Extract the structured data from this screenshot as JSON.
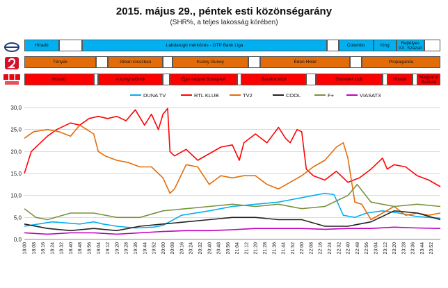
{
  "title": "2015. május 29., péntek esti közönségarány",
  "subtitle": "(SHR%, a teljes lakosság körében)",
  "colors": {
    "duna": "#00b0f0",
    "m1": "#00b0f0",
    "tv2": "#e36c0a",
    "rtl": "#ff0000",
    "blank": "#ffffff"
  },
  "schedules": [
    {
      "channel": "M1/Duna",
      "logo": "m1-logo-icon",
      "segments": [
        {
          "label": "Híradó",
          "start": "18:00",
          "end": "18:30",
          "color": "#00b0f0"
        },
        {
          "label": "",
          "start": "18:30",
          "end": "18:50",
          "color": "#ffffff"
        },
        {
          "label": "Labdarugó mérkőzés - OTP Bank Liga",
          "start": "18:50",
          "end": "22:22",
          "color": "#00b0f0"
        },
        {
          "label": "",
          "start": "22:22",
          "end": "22:32",
          "color": "#ffffff"
        },
        {
          "label": "Columbo",
          "start": "22:32",
          "end": "23:02",
          "color": "#00b0f0"
        },
        {
          "label": "King",
          "start": "23:02",
          "end": "23:22",
          "color": "#00b0f0"
        },
        {
          "label": "Rejtélyes XX. Század",
          "start": "23:22",
          "end": "23:46",
          "color": "#00b0f0"
        },
        {
          "label": "",
          "start": "23:46",
          "end": "24:00",
          "color": "#ffffff"
        }
      ]
    },
    {
      "channel": "TV2",
      "logo": "tv2-logo-icon",
      "segments": [
        {
          "label": "Tények",
          "start": "18:00",
          "end": "19:02",
          "color": "#e36c0a"
        },
        {
          "label": "",
          "start": "19:02",
          "end": "19:12",
          "color": "#ffffff"
        },
        {
          "label": "Jóban rosszban",
          "start": "19:12",
          "end": "20:00",
          "color": "#e36c0a"
        },
        {
          "label": "",
          "start": "20:00",
          "end": "20:08",
          "color": "#ffffff"
        },
        {
          "label": "Kuzey Guney",
          "start": "20:08",
          "end": "21:14",
          "color": "#e36c0a"
        },
        {
          "label": "",
          "start": "21:14",
          "end": "21:24",
          "color": "#ffffff"
        },
        {
          "label": "Éden Hotel",
          "start": "21:24",
          "end": "22:42",
          "color": "#e36c0a"
        },
        {
          "label": "",
          "start": "22:42",
          "end": "22:52",
          "color": "#ffffff"
        },
        {
          "label": "Propaganda",
          "start": "22:52",
          "end": "24:00",
          "color": "#e36c0a"
        }
      ]
    },
    {
      "channel": "RTL Klub",
      "logo": "rtl-klub-logo-icon",
      "segments": [
        {
          "label": "Híradó",
          "start": "18:00",
          "end": "19:00",
          "color": "#ff0000"
        },
        {
          "label": "",
          "start": "19:00",
          "end": "19:04",
          "color": "#ffffff"
        },
        {
          "label": "A konyhafőnök",
          "start": "19:04",
          "end": "20:00",
          "color": "#ff0000"
        },
        {
          "label": "",
          "start": "20:00",
          "end": "20:06",
          "color": "#ffffff"
        },
        {
          "label": "Éjjel-nappal Budapest",
          "start": "20:06",
          "end": "21:04",
          "color": "#ff0000"
        },
        {
          "label": "",
          "start": "21:04",
          "end": "21:08",
          "color": "#ffffff"
        },
        {
          "label": "Barátok közt",
          "start": "21:08",
          "end": "22:04",
          "color": "#ff0000"
        },
        {
          "label": "",
          "start": "22:04",
          "end": "22:12",
          "color": "#ffffff"
        },
        {
          "label": "Showder klub",
          "start": "22:12",
          "end": "23:10",
          "color": "#ff0000"
        },
        {
          "label": "",
          "start": "23:10",
          "end": "23:14",
          "color": "#ffffff"
        },
        {
          "label": "Híradó",
          "start": "23:14",
          "end": "23:36",
          "color": "#ff0000"
        },
        {
          "label": "",
          "start": "23:36",
          "end": "23:40",
          "color": "#ffffff"
        },
        {
          "label": "Magyarul Balóval",
          "start": "23:40",
          "end": "24:00",
          "color": "#ff0000"
        }
      ]
    }
  ],
  "chart_data": {
    "type": "line",
    "title": "2015. május 29., péntek esti közönségarány",
    "subtitle": "(SHR%, a teljes lakosság körében)",
    "ylim": [
      0,
      30
    ],
    "yticks": [
      "0,0",
      "5,0",
      "10,0",
      "15,0",
      "20,0",
      "25,0",
      "30,0"
    ],
    "grid": true,
    "legend": "top",
    "x_start": "18:00",
    "x_step_minutes": 8,
    "x_ticks": [
      "18:00",
      "18:08",
      "18:16",
      "18:24",
      "18:32",
      "18:40",
      "18:48",
      "18:56",
      "19:04",
      "19:12",
      "19:20",
      "19:28",
      "19:36",
      "19:44",
      "19:52",
      "20:00",
      "20:08",
      "20:16",
      "20:24",
      "20:32",
      "20:40",
      "20:48",
      "20:56",
      "21:04",
      "21:12",
      "21:20",
      "21:28",
      "21:36",
      "21:44",
      "21:52",
      "22:00",
      "22:08",
      "22:16",
      "22:24",
      "22:32",
      "22:40",
      "22:48",
      "22:56",
      "23:04",
      "23:12",
      "23:20",
      "23:28",
      "23:36",
      "23:44",
      "23:52"
    ],
    "series": [
      {
        "name": "DUNA TV",
        "color": "#00b0f0",
        "times": [
          "18:00",
          "18:24",
          "18:48",
          "19:00",
          "19:08",
          "19:20",
          "19:36",
          "19:52",
          "20:00",
          "20:16",
          "20:40",
          "21:00",
          "21:20",
          "21:40",
          "21:50",
          "22:00",
          "22:10",
          "22:20",
          "22:28",
          "22:36",
          "22:46",
          "22:56",
          "23:10",
          "23:24",
          "23:40",
          "24:00"
        ],
        "values": [
          3.0,
          4.0,
          3.5,
          4.0,
          3.5,
          3.0,
          2.6,
          2.8,
          3.2,
          5.5,
          6.5,
          7.5,
          8.0,
          8.5,
          9.0,
          9.5,
          10.0,
          10.5,
          10.2,
          5.5,
          5.0,
          6.0,
          6.5,
          6.0,
          5.2,
          4.8
        ]
      },
      {
        "name": "RTL KLUB",
        "color": "#ff0000",
        "times": [
          "18:00",
          "18:06",
          "18:12",
          "18:20",
          "18:28",
          "18:40",
          "18:48",
          "18:56",
          "19:04",
          "19:12",
          "19:20",
          "19:28",
          "19:36",
          "19:44",
          "19:50",
          "19:56",
          "20:00",
          "20:04",
          "20:06",
          "20:10",
          "20:20",
          "20:30",
          "20:40",
          "20:50",
          "21:00",
          "21:06",
          "21:10",
          "21:20",
          "21:30",
          "21:40",
          "21:46",
          "21:50",
          "21:56",
          "22:00",
          "22:04",
          "22:10",
          "22:20",
          "22:30",
          "22:40",
          "22:50",
          "23:00",
          "23:10",
          "23:14",
          "23:20",
          "23:30",
          "23:40",
          "23:50",
          "24:00"
        ],
        "values": [
          15.0,
          20.0,
          21.5,
          23.5,
          25.0,
          26.5,
          26.0,
          27.5,
          28.0,
          27.5,
          28.0,
          27.0,
          29.5,
          26.0,
          28.5,
          25.0,
          28.5,
          29.8,
          20.0,
          19.0,
          20.5,
          18.0,
          19.5,
          21.0,
          21.5,
          18.0,
          22.0,
          24.0,
          22.0,
          25.5,
          23.0,
          22.0,
          25.0,
          24.5,
          16.0,
          14.5,
          13.5,
          15.5,
          13.0,
          14.0,
          16.0,
          18.5,
          16.0,
          17.0,
          16.5,
          14.5,
          13.5,
          12.0
        ]
      },
      {
        "name": "TV2",
        "color": "#e36c0a",
        "times": [
          "18:00",
          "18:08",
          "18:20",
          "18:30",
          "18:40",
          "18:48",
          "19:00",
          "19:04",
          "19:10",
          "19:20",
          "19:30",
          "19:40",
          "19:50",
          "20:00",
          "20:06",
          "20:10",
          "20:20",
          "20:30",
          "20:40",
          "20:50",
          "21:00",
          "21:10",
          "21:20",
          "21:30",
          "21:40",
          "21:50",
          "22:00",
          "22:10",
          "22:20",
          "22:30",
          "22:36",
          "22:40",
          "22:46",
          "22:52",
          "23:00",
          "23:10",
          "23:20",
          "23:30",
          "23:40",
          "23:50",
          "24:00"
        ],
        "values": [
          23.0,
          24.5,
          25.0,
          24.5,
          23.5,
          26.0,
          24.0,
          20.0,
          19.0,
          18.0,
          17.5,
          16.5,
          16.5,
          14.0,
          10.5,
          11.5,
          17.0,
          16.5,
          12.5,
          14.5,
          14.0,
          14.5,
          14.5,
          12.5,
          11.5,
          13.0,
          14.5,
          16.5,
          18.0,
          21.0,
          22.0,
          18.5,
          8.5,
          8.0,
          4.5,
          6.0,
          7.5,
          5.5,
          6.0,
          5.5,
          6.0
        ]
      },
      {
        "name": "COOL",
        "color": "#222222",
        "times": [
          "18:00",
          "18:20",
          "18:40",
          "19:00",
          "19:20",
          "19:40",
          "20:00",
          "20:20",
          "20:40",
          "21:00",
          "21:20",
          "21:40",
          "22:00",
          "22:20",
          "22:40",
          "23:00",
          "23:20",
          "23:40",
          "24:00"
        ],
        "values": [
          3.5,
          2.5,
          2.0,
          2.5,
          2.0,
          3.0,
          3.5,
          4.0,
          4.5,
          5.0,
          5.0,
          4.5,
          4.5,
          3.0,
          3.0,
          4.0,
          6.5,
          6.0,
          4.5
        ]
      },
      {
        "name": "F+",
        "color": "#77933c",
        "times": [
          "18:00",
          "18:10",
          "18:20",
          "18:40",
          "19:00",
          "19:20",
          "19:40",
          "20:00",
          "20:20",
          "20:40",
          "21:00",
          "21:20",
          "21:40",
          "22:00",
          "22:20",
          "22:40",
          "22:48",
          "23:00",
          "23:20",
          "23:40",
          "24:00"
        ],
        "values": [
          7.0,
          5.0,
          4.5,
          6.0,
          6.0,
          5.0,
          5.0,
          6.5,
          7.0,
          7.5,
          8.0,
          7.5,
          8.0,
          7.0,
          7.5,
          10.0,
          12.5,
          8.5,
          7.5,
          8.0,
          7.5
        ]
      },
      {
        "name": "VIASAT3",
        "color": "#c000c0",
        "times": [
          "18:00",
          "18:20",
          "18:40",
          "19:00",
          "19:20",
          "19:40",
          "20:00",
          "20:20",
          "20:40",
          "21:00",
          "21:20",
          "21:40",
          "22:00",
          "22:20",
          "22:40",
          "23:00",
          "23:20",
          "23:40",
          "24:00"
        ],
        "values": [
          1.5,
          1.2,
          1.5,
          1.5,
          1.2,
          1.5,
          1.8,
          2.0,
          2.0,
          2.2,
          2.5,
          2.5,
          2.5,
          2.3,
          2.5,
          2.5,
          2.8,
          2.6,
          2.5
        ]
      }
    ]
  }
}
